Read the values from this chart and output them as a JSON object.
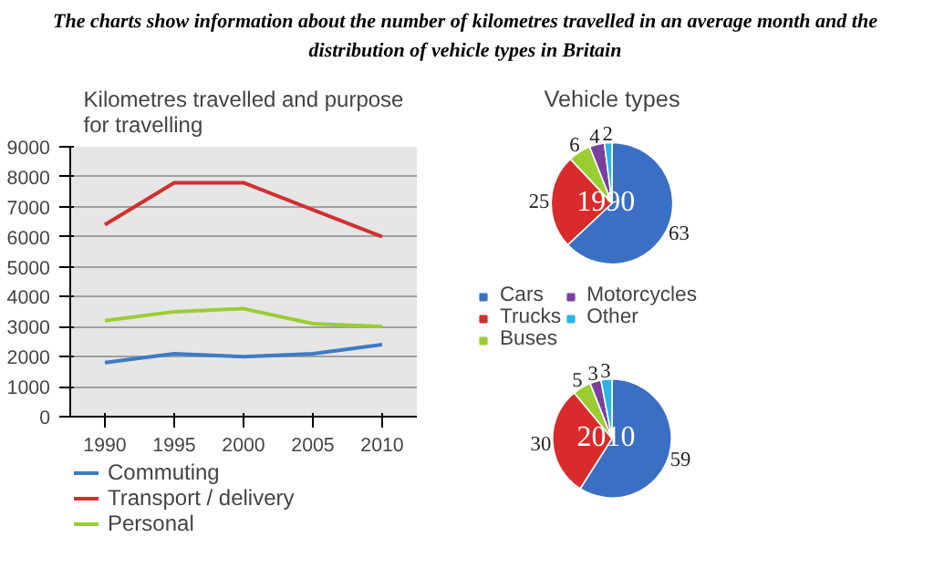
{
  "chart_data": [
    {
      "type": "line",
      "title": "The charts show information about the number of kilometres travelled in an average month and the distribution of vehicle types in Britain",
      "subtitle": "Kilometres travelled and purpose for travelling",
      "categories": [
        "1990",
        "1995",
        "2000",
        "2005",
        "2010"
      ],
      "ylim": [
        0,
        9000
      ],
      "yticks": [
        0,
        1000,
        2000,
        3000,
        4000,
        5000,
        6000,
        7000,
        8000,
        9000
      ],
      "grid": "y",
      "legend": "bottom",
      "series": [
        {
          "name": "Commuting",
          "color": "#3c7cc4",
          "values": [
            1800,
            2100,
            2000,
            2100,
            2400
          ]
        },
        {
          "name": "Transport / delivery",
          "color": "#d03030",
          "values": [
            6400,
            7800,
            7800,
            6900,
            6000
          ]
        },
        {
          "name": "Personal",
          "color": "#9acd32",
          "values": [
            3200,
            3500,
            3600,
            3100,
            3000
          ]
        }
      ]
    },
    {
      "type": "pie",
      "title": "Vehicle types",
      "annotations": [
        "1990"
      ],
      "categories": [
        "Cars",
        "Trucks",
        "Buses",
        "Motorcycles",
        "Other"
      ],
      "values": [
        63,
        25,
        6,
        4,
        2
      ],
      "colors": [
        "#3a6fc4",
        "#d92b2b",
        "#9acd32",
        "#7a3fa0",
        "#2bb5e6"
      ],
      "data_labels": true,
      "legend": "bottom"
    },
    {
      "type": "pie",
      "annotations": [
        "2010"
      ],
      "values": [
        59,
        30,
        5,
        3,
        3
      ],
      "colors": [
        "#3a6fc4",
        "#d92b2b",
        "#9acd32",
        "#7a3fa0",
        "#2bb5e6"
      ],
      "data_labels": true
    }
  ]
}
